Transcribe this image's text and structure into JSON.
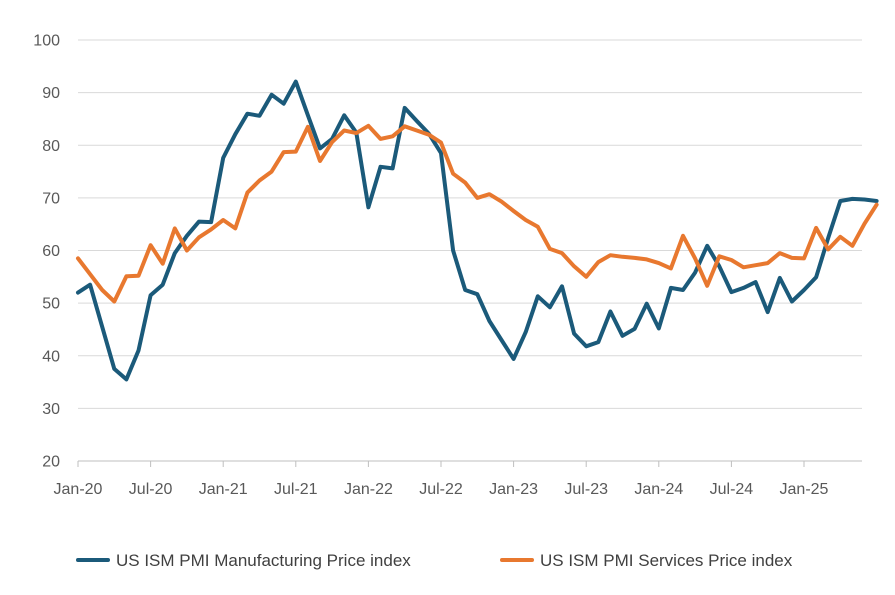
{
  "chart_data": {
    "type": "line",
    "title": "",
    "xlabel": "",
    "ylabel": "",
    "ylim": [
      20,
      100
    ],
    "yticks": [
      20,
      30,
      40,
      50,
      60,
      70,
      80,
      90,
      100
    ],
    "grid": true,
    "legend_position": "bottom",
    "x_start": "Jan-20",
    "x_tick_labels": [
      "Jan-20",
      "Jul-20",
      "Jan-21",
      "Jul-21",
      "Jan-22",
      "Jul-22",
      "Jan-23",
      "Jul-23",
      "Jan-24",
      "Jul-24",
      "Jan-25"
    ],
    "x_tick_months": [
      0,
      6,
      12,
      18,
      24,
      30,
      36,
      42,
      48,
      54,
      60
    ],
    "series": [
      {
        "name": "US ISM PMI Manufacturing Price index",
        "color": "#1b5a7a",
        "values": [
          52.0,
          53.5,
          45.5,
          37.5,
          35.5,
          41.0,
          51.5,
          53.5,
          59.5,
          62.8,
          65.5,
          65.4,
          77.6,
          82.1,
          86.0,
          85.6,
          89.6,
          87.9,
          92.1,
          85.7,
          79.4,
          81.2,
          85.7,
          82.4,
          68.2,
          75.9,
          75.6,
          87.1,
          84.6,
          82.2,
          78.5,
          60.0,
          52.5,
          51.7,
          46.6,
          43.0,
          39.4,
          44.5,
          51.3,
          49.2,
          53.2,
          44.2,
          41.8,
          42.6,
          48.4,
          43.8,
          45.1,
          49.9,
          45.2,
          52.9,
          52.5,
          55.8,
          60.9,
          57.0,
          52.1,
          52.9,
          54.0,
          48.3,
          54.8,
          50.3,
          52.5,
          54.9,
          62.4,
          69.4,
          69.8,
          69.7,
          69.4
        ],
        "values_x_months": [
          0,
          1,
          2,
          3,
          4,
          5,
          6,
          7,
          8,
          9,
          10,
          11,
          12,
          13,
          14,
          15,
          16,
          17,
          18,
          19,
          20,
          21,
          22,
          23,
          24,
          25,
          26,
          27,
          28,
          29,
          30,
          31,
          32,
          33,
          34,
          35,
          36,
          37,
          38,
          39,
          40,
          41,
          42,
          43,
          44,
          45,
          46,
          47,
          48,
          49,
          50,
          51,
          52,
          53,
          54,
          55,
          56,
          57,
          58,
          59,
          60,
          61,
          62,
          63,
          64,
          65,
          66
        ]
      },
      {
        "name": "US ISM PMI Services Price index",
        "color": "#e8782f",
        "values": [
          58.5,
          55.5,
          52.5,
          50.3,
          55.1,
          55.2,
          61.0,
          57.5,
          64.2,
          60.0,
          62.5,
          64.0,
          65.8,
          64.2,
          71.0,
          73.3,
          75.0,
          78.7,
          78.8,
          83.5,
          77.0,
          80.6,
          82.8,
          82.3,
          83.7,
          81.2,
          81.7,
          83.6,
          82.8,
          82.0,
          80.5,
          74.6,
          72.9,
          70.0,
          70.7,
          69.3,
          67.5,
          65.8,
          64.5,
          60.3,
          59.5,
          57.0,
          55.0,
          57.8,
          59.1,
          58.8,
          58.6,
          58.3,
          57.6,
          56.6,
          62.8,
          58.5,
          53.3,
          58.9,
          58.2,
          56.8,
          57.2,
          57.6,
          59.5,
          58.6,
          58.5,
          64.3,
          60.2,
          62.6,
          60.9,
          65.1,
          68.7
        ],
        "values_x_months": [
          0,
          1,
          2,
          3,
          4,
          5,
          6,
          7,
          8,
          9,
          10,
          11,
          12,
          13,
          14,
          15,
          16,
          17,
          18,
          19,
          20,
          21,
          22,
          23,
          24,
          25,
          26,
          27,
          28,
          29,
          30,
          31,
          32,
          33,
          34,
          35,
          36,
          37,
          38,
          39,
          40,
          41,
          42,
          43,
          44,
          45,
          46,
          47,
          48,
          49,
          50,
          51,
          52,
          53,
          54,
          55,
          56,
          57,
          58,
          59,
          60,
          61,
          62,
          63,
          64,
          65,
          66
        ]
      }
    ]
  }
}
